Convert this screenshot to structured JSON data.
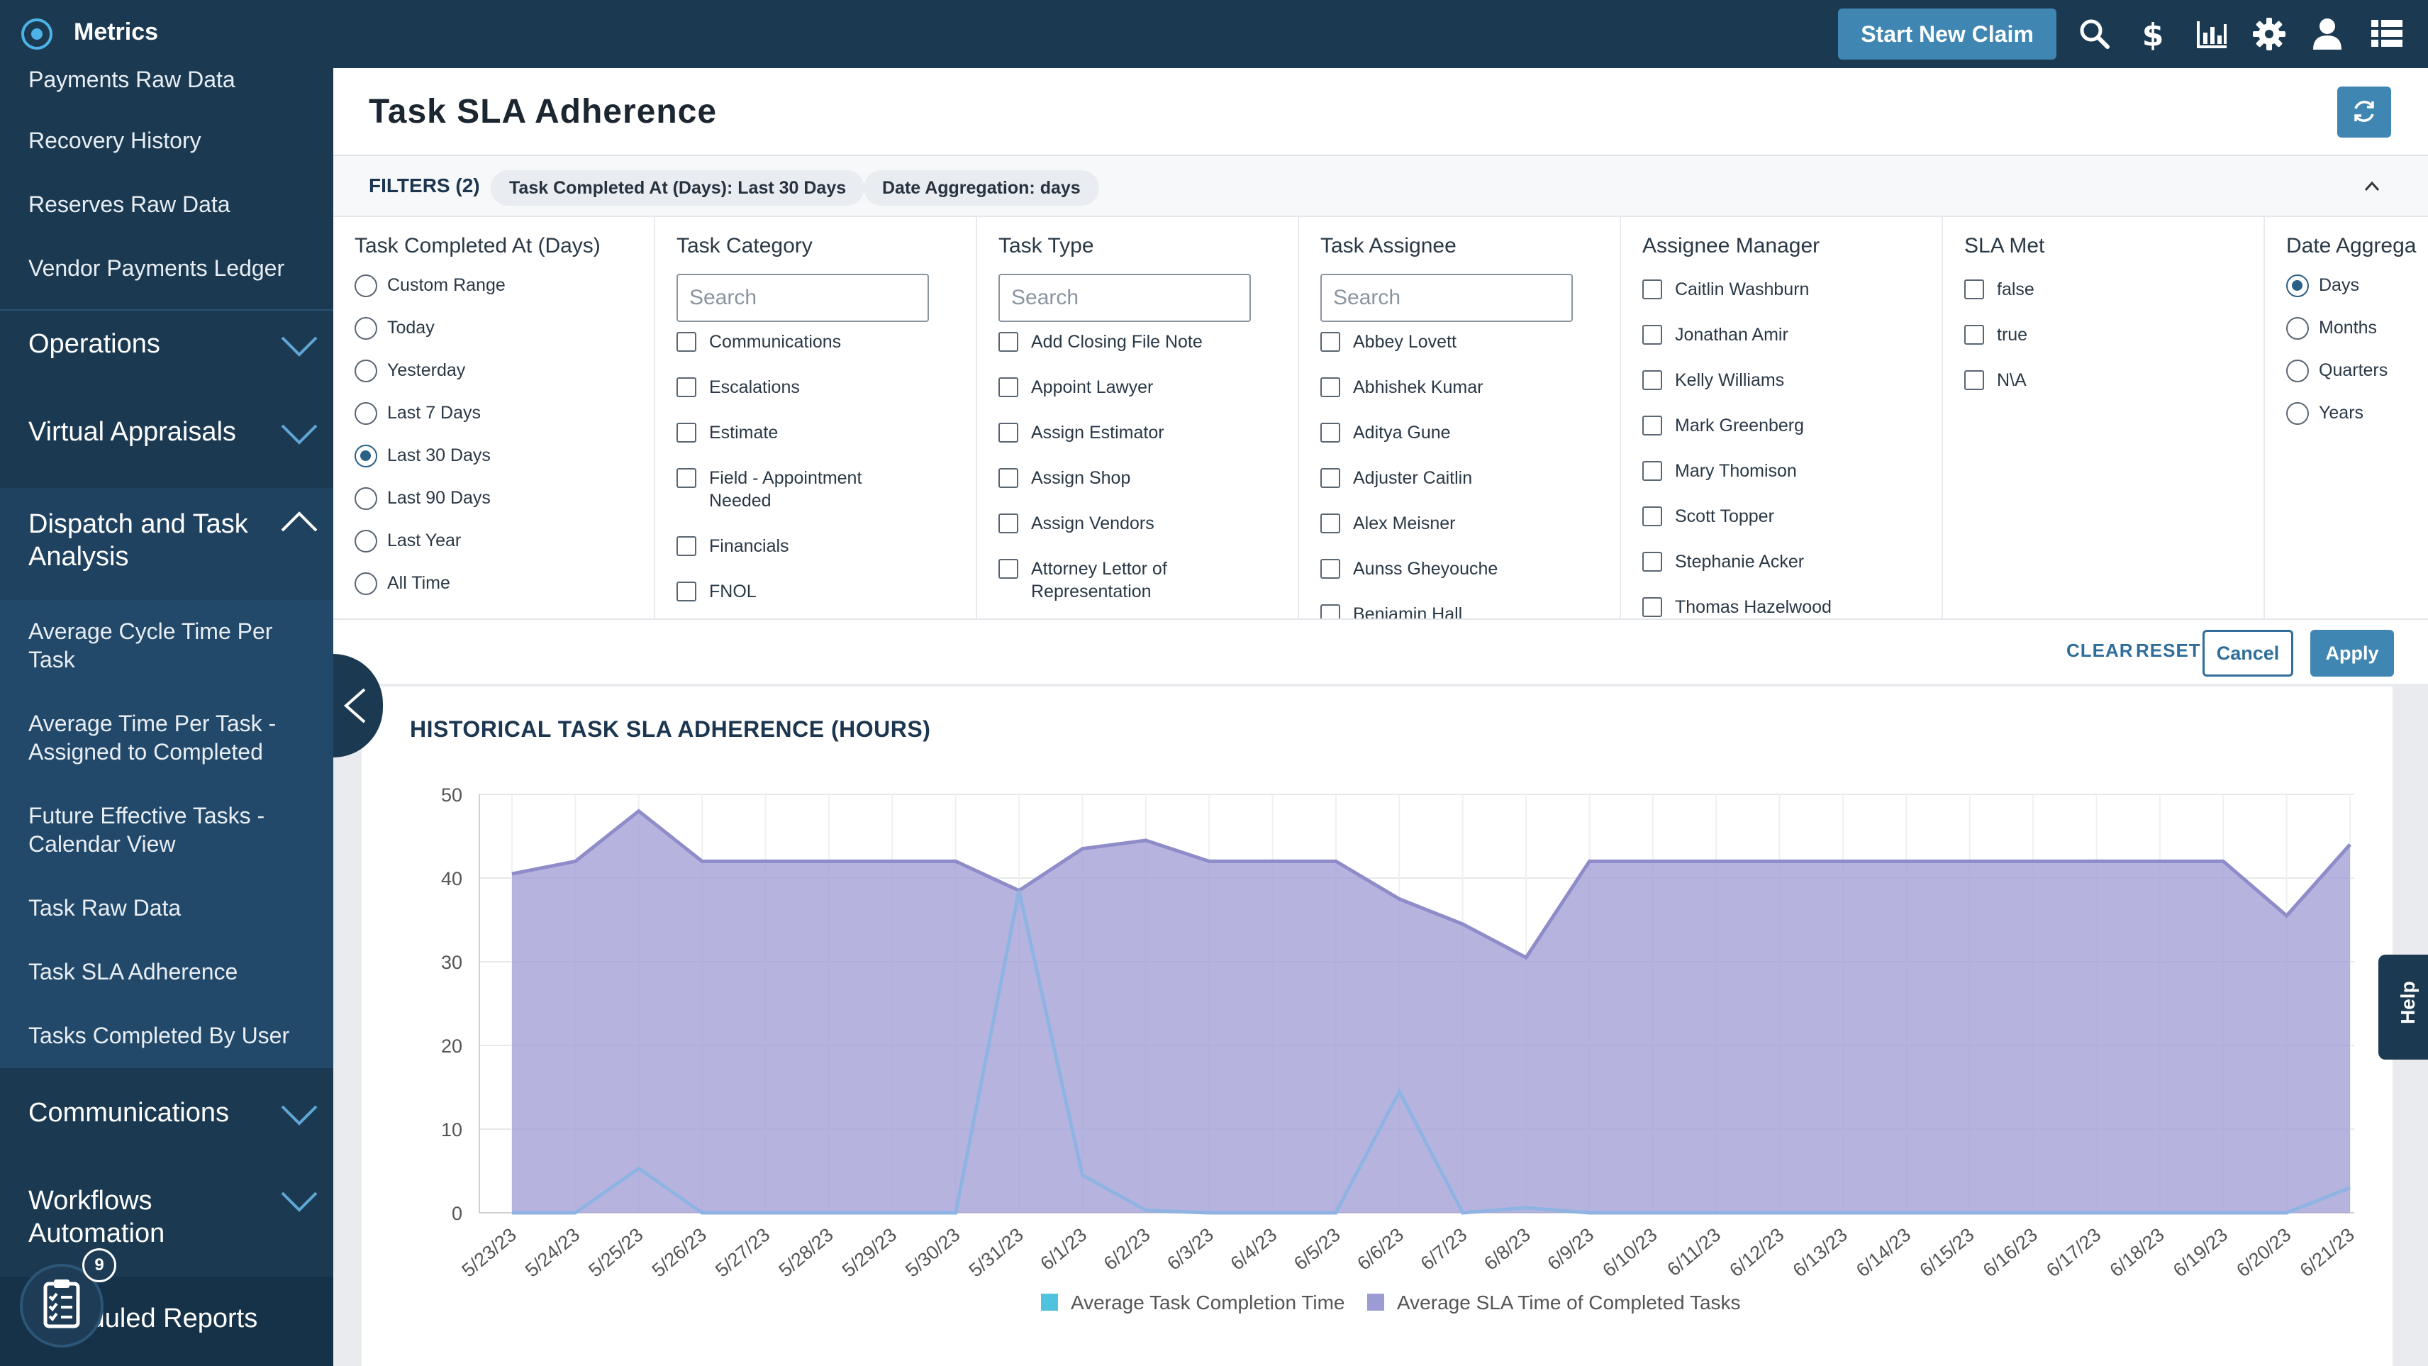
{
  "app": {
    "title": "Metrics"
  },
  "topbar": {
    "new_claim_label": "Start New Claim",
    "icons": [
      "search-icon",
      "dollar-icon",
      "chart-bar-icon",
      "gear-icon",
      "user-icon",
      "grid-icon"
    ]
  },
  "sidebar": {
    "reports_links": [
      "Payments Raw Data",
      "Recovery History",
      "Reserves Raw Data",
      "Vendor Payments Ledger"
    ],
    "groups": {
      "operations": "Operations",
      "virtual_appraisals": "Virtual Appraisals",
      "dispatch": "Dispatch and Task Analysis",
      "communications": "Communications",
      "workflows": "Workflows Automation",
      "scheduled": "Scheduled Reports"
    },
    "dispatch_links": [
      "Average Cycle Time Per Task",
      "Average Time Per Task - Assigned to Completed",
      "Future Effective Tasks - Calendar View",
      "Task Raw Data",
      "Task SLA Adherence",
      "Tasks Completed By User"
    ],
    "scheduled_badge": "9"
  },
  "page": {
    "title": "Task SLA Adherence"
  },
  "filters": {
    "label": "FILTERS (2)",
    "chips": [
      "Task Completed At (Days): Last 30 Days",
      "Date Aggregation: days"
    ],
    "columns": [
      {
        "title": "Task Completed At (Days)",
        "type": "radio",
        "options": [
          "Custom Range",
          "Today",
          "Yesterday",
          "Last 7 Days",
          "Last 30 Days",
          "Last 90 Days",
          "Last Year",
          "All Time"
        ],
        "selected": "Last 30 Days"
      },
      {
        "title": "Task Category",
        "type": "checkbox",
        "search_placeholder": "Search",
        "options": [
          "Communications",
          "Escalations",
          "Estimate",
          "Field - Appointment Needed",
          "Financials",
          "FNOL"
        ]
      },
      {
        "title": "Task Type",
        "type": "checkbox",
        "search_placeholder": "Search",
        "options": [
          "Add Closing File Note",
          "Appoint Lawyer",
          "Assign Estimator",
          "Assign Shop",
          "Assign Vendors",
          "Attorney Lettor of Representation"
        ]
      },
      {
        "title": "Task Assignee",
        "type": "checkbox",
        "search_placeholder": "Search",
        "options": [
          "Abbey Lovett",
          "Abhishek Kumar",
          "Aditya Gune",
          "Adjuster Caitlin",
          "Alex Meisner",
          "Aunss Gheyouche",
          "Benjamin Hall"
        ]
      },
      {
        "title": "Assignee Manager",
        "type": "checkbox",
        "options": [
          "Caitlin Washburn",
          "Jonathan Amir",
          "Kelly Williams",
          "Mark Greenberg",
          "Mary Thomison",
          "Scott Topper",
          "Stephanie Acker",
          "Thomas Hazelwood"
        ]
      },
      {
        "title": "SLA Met",
        "type": "checkbox",
        "options": [
          "false",
          "true",
          "N\\A"
        ]
      },
      {
        "title": "Date Aggrega",
        "type": "radio",
        "options": [
          "Days",
          "Months",
          "Quarters",
          "Years"
        ],
        "selected": "Days"
      }
    ],
    "actions": {
      "clear": "CLEAR",
      "reset": "RESET",
      "cancel": "Cancel",
      "apply": "Apply"
    }
  },
  "help": {
    "label": "Help"
  },
  "chart_data": {
    "type": "area",
    "title": "HISTORICAL TASK SLA ADHERENCE (HOURS)",
    "categories": [
      "5/23/23",
      "5/24/23",
      "5/25/23",
      "5/26/23",
      "5/27/23",
      "5/28/23",
      "5/29/23",
      "5/30/23",
      "5/31/23",
      "6/1/23",
      "6/2/23",
      "6/3/23",
      "6/4/23",
      "6/5/23",
      "6/6/23",
      "6/7/23",
      "6/8/23",
      "6/9/23",
      "6/10/23",
      "6/11/23",
      "6/12/23",
      "6/13/23",
      "6/14/23",
      "6/15/23",
      "6/16/23",
      "6/17/23",
      "6/18/23",
      "6/19/23",
      "6/20/23",
      "6/21/23"
    ],
    "series": [
      {
        "name": "Average SLA Time of Completed Tasks",
        "color": "#9d9bd4",
        "line_color": "#8e8cc9",
        "values": [
          40.5,
          42,
          48,
          42,
          42,
          42,
          42,
          42,
          38.5,
          43.5,
          44.5,
          42,
          42,
          42,
          37.5,
          34.5,
          30.5,
          42,
          42,
          42,
          42,
          42,
          42,
          42,
          42,
          42,
          42,
          42,
          35.5,
          44
        ]
      },
      {
        "name": "Average Task Completion Time",
        "color": "#4fc3de",
        "line_color": "#8fb3e3",
        "values": [
          0,
          0,
          5.3,
          0,
          0,
          0,
          0,
          0,
          38.5,
          4.5,
          0.3,
          0,
          0,
          0,
          14.5,
          0,
          0.6,
          0,
          0,
          0,
          0,
          0,
          0,
          0,
          0,
          0,
          0,
          0,
          0,
          3
        ]
      }
    ],
    "legend": [
      "Average Task Completion Time",
      "Average SLA Time of Completed Tasks"
    ],
    "legend_colors": [
      "#4fc3de",
      "#9d9bd4"
    ],
    "legend_position": "bottom",
    "y_ticks": [
      0,
      10,
      20,
      30,
      40,
      50
    ],
    "ylim": [
      0,
      50
    ],
    "grid": true
  }
}
